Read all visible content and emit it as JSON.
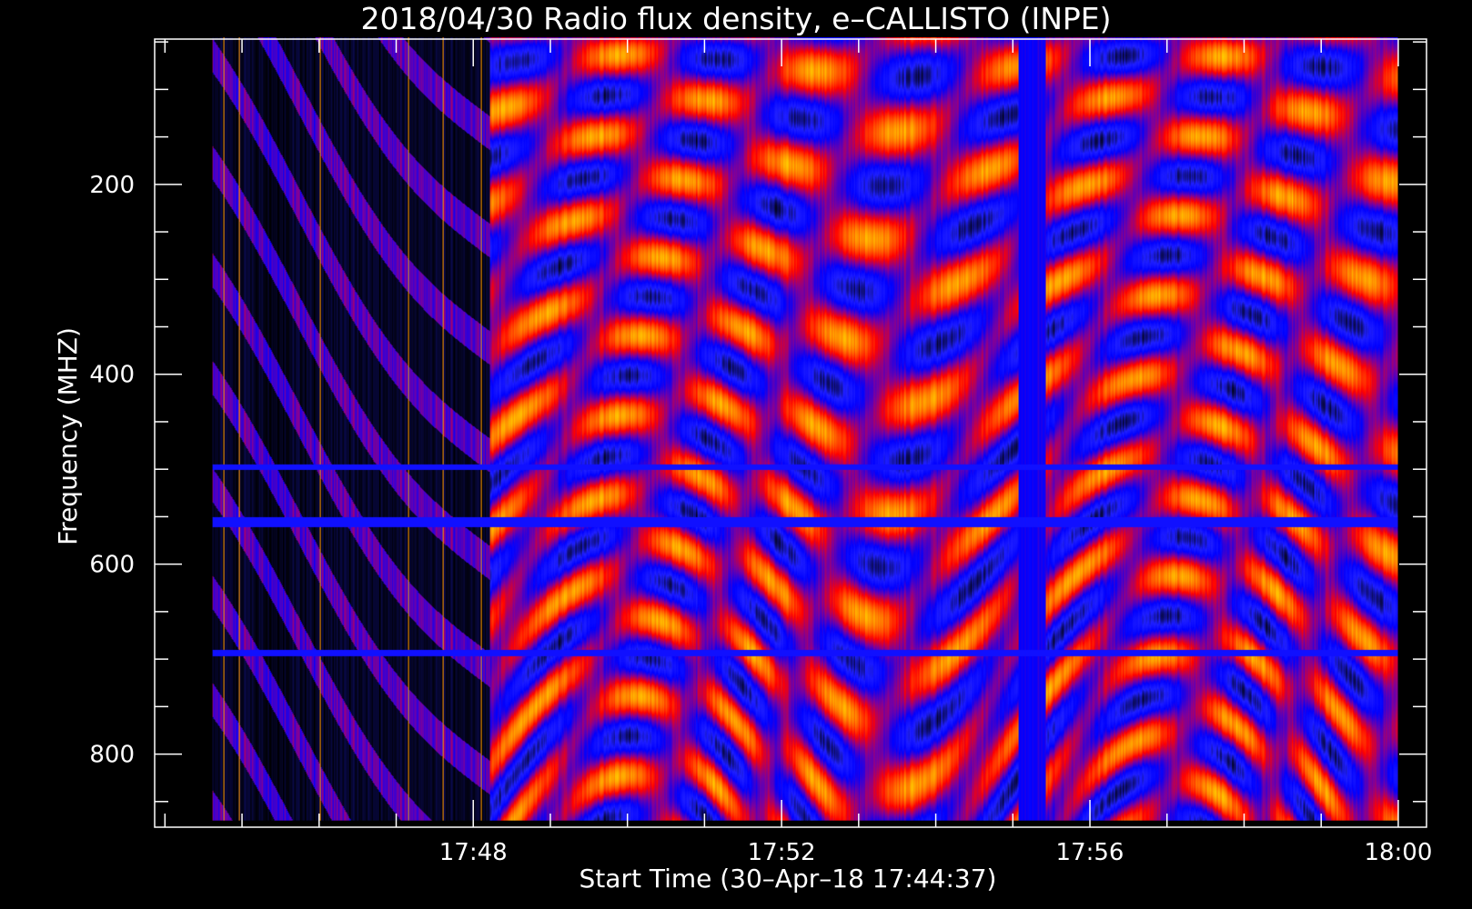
{
  "chart_data": {
    "type": "heatmap",
    "title": "2018/04/30  Radio flux density, e–CALLISTO (INPE)",
    "xlabel": "Start Time (30–Apr–18 17:44:37)",
    "ylabel": "Frequency (MHZ)",
    "x_ticks": [
      {
        "label": "17:48",
        "value": "17:48"
      },
      {
        "label": "17:52",
        "value": "17:52"
      },
      {
        "label": "17:56",
        "value": "17:56"
      },
      {
        "label": "18:00",
        "value": "18:00"
      }
    ],
    "y_ticks": [
      {
        "label": "200",
        "value": 200
      },
      {
        "label": "400",
        "value": 400
      },
      {
        "label": "600",
        "value": 600
      },
      {
        "label": "800",
        "value": 800
      }
    ],
    "xlim": [
      "17:43:52",
      "18:00:22"
    ],
    "ylim": [
      877,
      47
    ],
    "data_xlim": [
      "17:44:37",
      "18:00:00"
    ],
    "data_ylim": [
      45,
      870
    ],
    "x_minor_tick_step_minutes": 1,
    "y_minor_tick_step_mhz": 50,
    "colormap": [
      "#000000",
      "#2020ff",
      "#0000ff",
      "#7a00a0",
      "#ff0000",
      "#ff6a00",
      "#ffd700"
    ],
    "grid": false
  }
}
